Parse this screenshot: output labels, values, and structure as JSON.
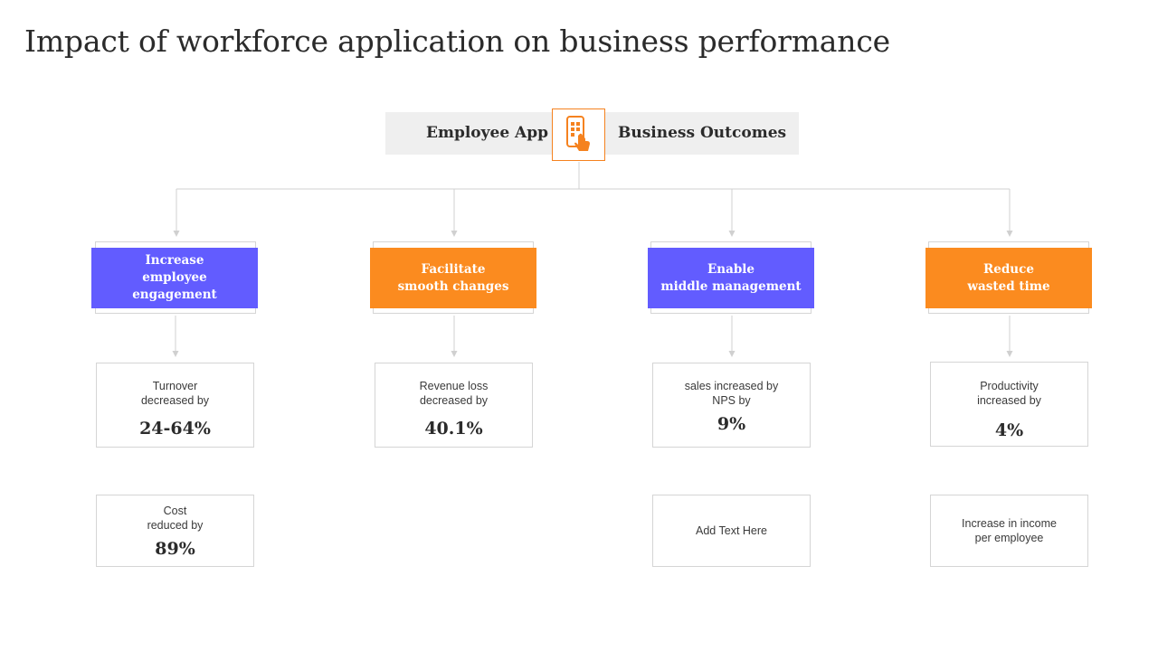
{
  "title": "Impact of workforce application on business performance",
  "header": {
    "left_label": "Employee App",
    "right_label": "Business Outcomes",
    "icon": "mobile-app-tap-icon"
  },
  "colors": {
    "purple": "#625cff",
    "orange": "#fb8b1f",
    "header_bg": "#efefef",
    "connector": "#d0d0d0"
  },
  "categories": [
    {
      "label": "Increase\nemployee\nengagement",
      "color": "purple"
    },
    {
      "label": "Facilitate\nsmooth changes",
      "color": "orange"
    },
    {
      "label": "Enable\nmiddle management",
      "color": "purple"
    },
    {
      "label": "Reduce\nwasted time",
      "color": "orange"
    }
  ],
  "stats_row1": [
    {
      "label": "Turnover\ndecreased by",
      "value": "24-64%"
    },
    {
      "label": "Revenue  loss\ndecreased by",
      "value": "40.1%"
    },
    {
      "label": "sales increased by\nNPS by",
      "value": "9%"
    },
    {
      "label": "Productivity\nincreased by",
      "value": "4%"
    }
  ],
  "stats_row2": [
    {
      "label": "Cost\nreduced by",
      "value": "89%"
    },
    {
      "label": "Add Text Here",
      "value": ""
    },
    {
      "label": "Increase in income\nper employee",
      "value": ""
    }
  ]
}
